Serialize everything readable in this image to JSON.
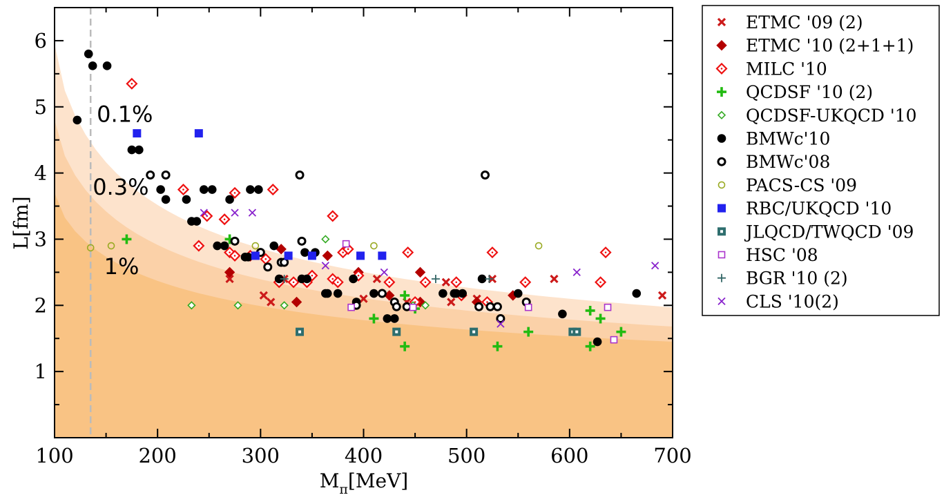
{
  "chart_data": {
    "type": "scatter",
    "title": "",
    "xlabel": "M",
    "xlabel_sub": "π",
    "xlabel_unit": "[MeV]",
    "ylabel": "L[fm]",
    "xlim": [
      100,
      700
    ],
    "ylim": [
      0,
      6.5
    ],
    "xticks": [
      100,
      200,
      300,
      400,
      500,
      600,
      700
    ],
    "yticks": [
      1,
      2,
      3,
      4,
      5,
      6
    ],
    "grid": false,
    "legend_position": "right-outside",
    "physical_point": {
      "x": 135,
      "style": "dashed",
      "color": "#bbbbbb"
    },
    "bands": [
      {
        "label": "0.1%",
        "label_x": 141,
        "label_y": 4.9,
        "color": "#fde3cc",
        "y_at_100": 5.95,
        "y_at_700": 1.97
      },
      {
        "label": "0.3%",
        "label_x": 137,
        "label_y": 3.8,
        "color": "#fbd1a8",
        "y_at_100": 4.8,
        "y_at_700": 1.68
      },
      {
        "label": "1%",
        "label_x": 148,
        "label_y": 2.6,
        "color": "#f9c384",
        "y_at_100": 3.7,
        "y_at_700": 1.45
      }
    ],
    "series": [
      {
        "name": "ETMC '09 (2)",
        "marker": "x",
        "color": "#cc1a1a",
        "filled": true,
        "points": [
          [
            270,
            2.4
          ],
          [
            303,
            2.15
          ],
          [
            310,
            2.05
          ],
          [
            323,
            2.4
          ],
          [
            400,
            2.1
          ],
          [
            413,
            2.4
          ],
          [
            442,
            2.05
          ],
          [
            480,
            2.35
          ],
          [
            485,
            2.05
          ],
          [
            510,
            2.1
          ],
          [
            525,
            2.4
          ],
          [
            585,
            2.4
          ],
          [
            690,
            2.15
          ]
        ]
      },
      {
        "name": "ETMC '10 (2+1+1)",
        "marker": "diamond",
        "color": "#b30000",
        "filled": true,
        "points": [
          [
            270,
            2.5
          ],
          [
            320,
            2.85
          ],
          [
            335,
            2.05
          ],
          [
            365,
            2.75
          ],
          [
            395,
            2.5
          ],
          [
            425,
            2.15
          ],
          [
            455,
            2.5
          ],
          [
            455,
            2.05
          ],
          [
            510,
            2.05
          ],
          [
            545,
            2.15
          ]
        ]
      },
      {
        "name": "MILC '10",
        "marker": "diamond",
        "color": "#ee1111",
        "filled": false,
        "points": [
          [
            175,
            5.35
          ],
          [
            225,
            3.75
          ],
          [
            240,
            2.9
          ],
          [
            248,
            3.35
          ],
          [
            265,
            3.3
          ],
          [
            270,
            2.8
          ],
          [
            275,
            3.7
          ],
          [
            275,
            2.75
          ],
          [
            290,
            2.75
          ],
          [
            305,
            2.7
          ],
          [
            312,
            3.75
          ],
          [
            318,
            2.35
          ],
          [
            332,
            2.35
          ],
          [
            345,
            2.35
          ],
          [
            350,
            2.45
          ],
          [
            370,
            3.35
          ],
          [
            370,
            2.4
          ],
          [
            375,
            2.35
          ],
          [
            380,
            2.8
          ],
          [
            385,
            2.85
          ],
          [
            395,
            2.45
          ],
          [
            425,
            2.35
          ],
          [
            443,
            2.8
          ],
          [
            450,
            2.05
          ],
          [
            460,
            2.35
          ],
          [
            490,
            2.35
          ],
          [
            495,
            2.15
          ],
          [
            520,
            2.05
          ],
          [
            525,
            2.8
          ],
          [
            557,
            2.35
          ],
          [
            630,
            2.35
          ],
          [
            635,
            2.8
          ]
        ]
      },
      {
        "name": "QCDSF '10 (2)",
        "marker": "plus",
        "color": "#22bb11",
        "filled": true,
        "points": [
          [
            170,
            3.0
          ],
          [
            270,
            3.0
          ],
          [
            410,
            1.8
          ],
          [
            440,
            1.38
          ],
          [
            440,
            2.15
          ],
          [
            450,
            1.95
          ],
          [
            530,
            1.38
          ],
          [
            560,
            1.6
          ],
          [
            620,
            1.38
          ],
          [
            620,
            1.92
          ],
          [
            630,
            1.8
          ],
          [
            650,
            1.6
          ]
        ]
      },
      {
        "name": "QCDSF-UKQCD '10",
        "marker": "diamond-small",
        "color": "#33aa22",
        "filled": false,
        "points": [
          [
            233,
            2.0
          ],
          [
            278,
            2.0
          ],
          [
            323,
            2.0
          ],
          [
            363,
            3.0
          ],
          [
            448,
            2.0
          ],
          [
            460,
            2.0
          ]
        ]
      },
      {
        "name": "BMWc'10",
        "marker": "circle",
        "color": "#000000",
        "filled": true,
        "points": [
          [
            122,
            4.8
          ],
          [
            133,
            5.8
          ],
          [
            137,
            5.62
          ],
          [
            151,
            5.62
          ],
          [
            175,
            4.35
          ],
          [
            182,
            4.35
          ],
          [
            203,
            3.75
          ],
          [
            208,
            3.6
          ],
          [
            228,
            3.6
          ],
          [
            233,
            3.27
          ],
          [
            238,
            3.27
          ],
          [
            245,
            3.75
          ],
          [
            253,
            3.75
          ],
          [
            258,
            2.9
          ],
          [
            265,
            2.9
          ],
          [
            270,
            3.6
          ],
          [
            285,
            2.73
          ],
          [
            288,
            2.73
          ],
          [
            290,
            3.75
          ],
          [
            298,
            3.75
          ],
          [
            313,
            2.9
          ],
          [
            318,
            2.4
          ],
          [
            343,
            2.8
          ],
          [
            340,
            2.4
          ],
          [
            345,
            2.4
          ],
          [
            353,
            2.8
          ],
          [
            363,
            2.18
          ],
          [
            365,
            2.18
          ],
          [
            375,
            2.18
          ],
          [
            390,
            2.4
          ],
          [
            393,
            2.05
          ],
          [
            410,
            2.18
          ],
          [
            418,
            2.18
          ],
          [
            423,
            1.8
          ],
          [
            430,
            1.8
          ],
          [
            477,
            2.18
          ],
          [
            488,
            2.18
          ],
          [
            490,
            2.18
          ],
          [
            496,
            2.18
          ],
          [
            515,
            2.4
          ],
          [
            550,
            2.18
          ],
          [
            593,
            1.87
          ],
          [
            627,
            1.45
          ],
          [
            665,
            2.18
          ]
        ]
      },
      {
        "name": "BMWc'08",
        "marker": "circle",
        "color": "#000000",
        "filled": false,
        "points": [
          [
            193,
            3.97
          ],
          [
            208,
            3.97
          ],
          [
            275,
            2.97
          ],
          [
            300,
            2.8
          ],
          [
            307,
            2.58
          ],
          [
            320,
            2.65
          ],
          [
            323,
            2.65
          ],
          [
            338,
            3.97
          ],
          [
            340,
            2.97
          ],
          [
            393,
            2.0
          ],
          [
            418,
            2.18
          ],
          [
            430,
            2.05
          ],
          [
            432,
            1.98
          ],
          [
            442,
            1.98
          ],
          [
            512,
            1.98
          ],
          [
            518,
            3.97
          ],
          [
            523,
            1.98
          ],
          [
            530,
            1.98
          ],
          [
            533,
            1.8
          ],
          [
            558,
            2.05
          ]
        ]
      },
      {
        "name": "PACS-CS '09",
        "marker": "circle-small",
        "color": "#99aa22",
        "filled": false,
        "points": [
          [
            135,
            2.87
          ],
          [
            155,
            2.9
          ],
          [
            295,
            2.9
          ],
          [
            410,
            2.9
          ],
          [
            570,
            2.9
          ]
        ]
      },
      {
        "name": "RBC/UKQCD '10",
        "marker": "square",
        "color": "#2222ee",
        "filled": true,
        "points": [
          [
            180,
            4.6
          ],
          [
            240,
            4.6
          ],
          [
            295,
            2.75
          ],
          [
            327,
            2.75
          ],
          [
            350,
            2.75
          ],
          [
            397,
            2.75
          ],
          [
            418,
            2.75
          ]
        ]
      },
      {
        "name": "JLQCD/TWQCD '09",
        "marker": "square-dot",
        "color": "#2e6e6e",
        "filled": true,
        "points": [
          [
            338,
            1.6
          ],
          [
            432,
            1.6
          ],
          [
            507,
            1.6
          ],
          [
            603,
            1.6
          ],
          [
            607,
            1.6
          ]
        ]
      },
      {
        "name": "HSC '08",
        "marker": "square-small",
        "color": "#aa33cc",
        "filled": false,
        "points": [
          [
            383,
            2.93
          ],
          [
            388,
            1.97
          ],
          [
            448,
            1.97
          ],
          [
            560,
            1.97
          ],
          [
            637,
            1.97
          ],
          [
            643,
            1.48
          ]
        ]
      },
      {
        "name": "BGR '10 (2)",
        "marker": "plus-thin",
        "color": "#336666",
        "filled": true,
        "points": [
          [
            323,
            2.4
          ],
          [
            470,
            2.4
          ],
          [
            522,
            2.4
          ]
        ]
      },
      {
        "name": "CLS '10(2)",
        "marker": "x-thin",
        "color": "#8822cc",
        "filled": true,
        "points": [
          [
            245,
            3.4
          ],
          [
            275,
            3.4
          ],
          [
            292,
            3.4
          ],
          [
            363,
            2.6
          ],
          [
            420,
            2.5
          ],
          [
            533,
            1.72
          ],
          [
            607,
            2.5
          ],
          [
            683,
            2.6
          ]
        ]
      }
    ]
  }
}
